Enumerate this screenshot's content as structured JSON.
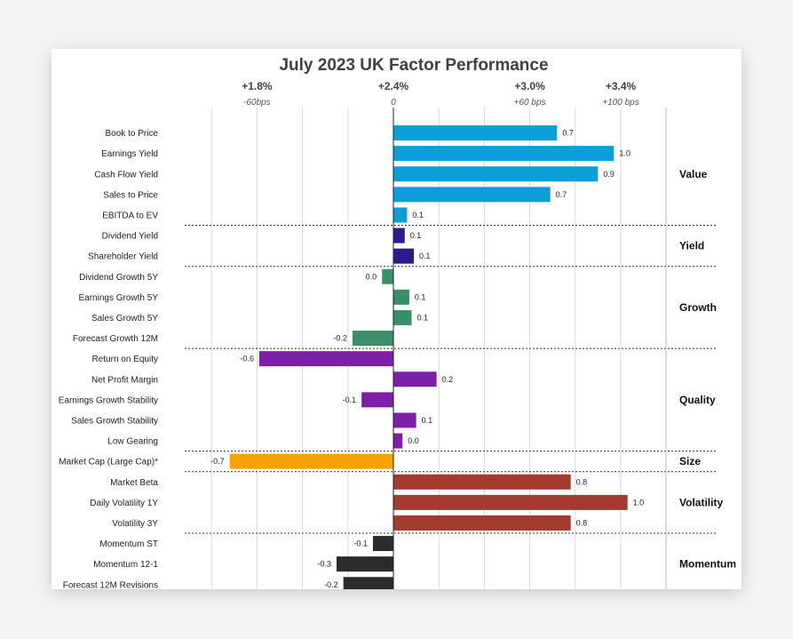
{
  "chart_data": {
    "type": "bar",
    "orientation": "horizontal",
    "title": "July 2023 UK Factor Performance",
    "top_axis": [
      {
        "value": -0.6,
        "main": "+1.8%",
        "sub": "-60bps"
      },
      {
        "value": 0,
        "main": "+2.4%",
        "sub": "0"
      },
      {
        "value": 0.6,
        "main": "+3.0%",
        "sub": "+60 bps"
      },
      {
        "value": 1.0,
        "main": "+3.4%",
        "sub": "+100 bps"
      }
    ],
    "xlim": [
      -0.8,
      1.1
    ],
    "grid_values": [
      -0.8,
      -0.6,
      -0.4,
      -0.2,
      0.2,
      0.4,
      0.6,
      0.8,
      1.0,
      1.2
    ],
    "groups": [
      {
        "name": "Value",
        "color": "#0b9ed9",
        "items": [
          {
            "label": "Book to Price",
            "value": 0.72,
            "label_text": "0.7"
          },
          {
            "label": "Earnings Yield",
            "value": 0.97,
            "label_text": "1.0"
          },
          {
            "label": "Cash Flow Yield",
            "value": 0.9,
            "label_text": "0.9"
          },
          {
            "label": "Sales to Price",
            "value": 0.69,
            "label_text": "0.7"
          },
          {
            "label": "EBITDA to EV",
            "value": 0.06,
            "label_text": "0.1"
          }
        ]
      },
      {
        "name": "Yield",
        "color": "#2a1c8f",
        "items": [
          {
            "label": "Dividend Yield",
            "value": 0.05,
            "label_text": "0.1"
          },
          {
            "label": "Shareholder Yield",
            "value": 0.09,
            "label_text": "0.1"
          }
        ]
      },
      {
        "name": "Growth",
        "color": "#3a8f6b",
        "items": [
          {
            "label": "Dividend Growth 5Y",
            "value": -0.05,
            "label_text": "0.0"
          },
          {
            "label": "Earnings Growth 5Y",
            "value": 0.07,
            "label_text": "0.1"
          },
          {
            "label": "Sales Growth 5Y",
            "value": 0.08,
            "label_text": "0.1"
          },
          {
            "label": "Forecast Growth 12M",
            "value": -0.18,
            "label_text": "-0.2"
          }
        ]
      },
      {
        "name": "Quality",
        "color": "#7d1fa8",
        "items": [
          {
            "label": "Return on Equity",
            "value": -0.59,
            "label_text": "-0.6"
          },
          {
            "label": "Net Profit Margin",
            "value": 0.19,
            "label_text": "0.2"
          },
          {
            "label": "Earnings Growth Stability",
            "value": -0.14,
            "label_text": "-0.1"
          },
          {
            "label": "Sales Growth Stability",
            "value": 0.1,
            "label_text": "0.1"
          },
          {
            "label": "Low Gearing",
            "value": 0.04,
            "label_text": "0.0"
          }
        ]
      },
      {
        "name": "Size",
        "color": "#f5a300",
        "items": [
          {
            "label": "Market Cap (Large Cap)*",
            "value": -0.72,
            "label_text": "-0.7"
          }
        ]
      },
      {
        "name": "Volatility",
        "color": "#a33a2e",
        "items": [
          {
            "label": "Market Beta",
            "value": 0.78,
            "label_text": "0.8"
          },
          {
            "label": "Daily Volatility 1Y",
            "value": 1.03,
            "label_text": "1.0"
          },
          {
            "label": "Volatility 3Y",
            "value": 0.78,
            "label_text": "0.8"
          }
        ]
      },
      {
        "name": "Momentum",
        "color": "#2b2b2b",
        "items": [
          {
            "label": "Momentum ST",
            "value": -0.09,
            "label_text": "-0.1"
          },
          {
            "label": "Momentum 12-1",
            "value": -0.25,
            "label_text": "-0.3"
          },
          {
            "label": "Forecast 12M Revisions",
            "value": -0.22,
            "label_text": "-0.2"
          }
        ]
      }
    ]
  }
}
